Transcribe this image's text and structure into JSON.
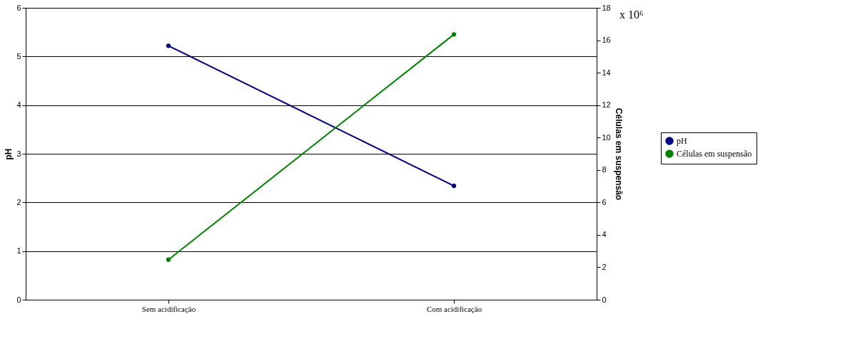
{
  "chart_data": {
    "type": "line",
    "categories": [
      "Sem acidificação",
      "Com acidificação"
    ],
    "ylabel": "pH",
    "y2label": "Células em suspensão",
    "series": [
      {
        "name": "pH",
        "color": "#000080",
        "values": [
          5.22,
          2.34
        ]
      },
      {
        "name": "Células em suspensão",
        "color": "#008000",
        "values": [
          2.47,
          16.36
        ],
        "axis": "y2"
      }
    ],
    "ylim": [
      0,
      6
    ],
    "yticks": [
      0,
      1,
      2,
      3,
      4,
      5,
      6
    ],
    "y2lim": [
      0,
      18
    ],
    "y2ticks": [
      0,
      2,
      4,
      6,
      8,
      10,
      12,
      14,
      16,
      18
    ],
    "annotations": [
      "x 10⁶"
    ],
    "grid": "y",
    "legend": "right",
    "marker": "circle",
    "line_style": "solid"
  }
}
